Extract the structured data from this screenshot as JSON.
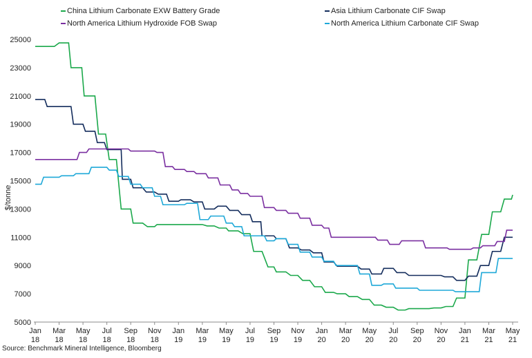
{
  "chart_data": {
    "type": "line",
    "title": "",
    "ylabel": "$/tonne",
    "xlabel": "",
    "ylim": [
      5000,
      25000
    ],
    "yticks": [
      5000,
      7000,
      9000,
      11000,
      13000,
      15000,
      17000,
      19000,
      21000,
      23000,
      25000
    ],
    "ytick_labels": [
      "5000",
      "7000",
      "9000",
      "11000",
      "13000",
      "15000",
      "17000",
      "19000",
      "21000",
      "23000",
      "25000"
    ],
    "xlim": [
      0,
      40
    ],
    "xticks": [
      {
        "month_index": 0,
        "line1": "Jan",
        "line2": "18"
      },
      {
        "month_index": 2,
        "line1": "Mar",
        "line2": "18"
      },
      {
        "month_index": 4,
        "line1": "May",
        "line2": "18"
      },
      {
        "month_index": 6,
        "line1": "Jul",
        "line2": "18"
      },
      {
        "month_index": 8,
        "line1": "Sep",
        "line2": "18"
      },
      {
        "month_index": 10,
        "line1": "Nov",
        "line2": "18"
      },
      {
        "month_index": 12,
        "line1": "Jan",
        "line2": "19"
      },
      {
        "month_index": 14,
        "line1": "Mar",
        "line2": "19"
      },
      {
        "month_index": 16,
        "line1": "May",
        "line2": "19"
      },
      {
        "month_index": 18,
        "line1": "Jul",
        "line2": "19"
      },
      {
        "month_index": 20,
        "line1": "Sep",
        "line2": "19"
      },
      {
        "month_index": 22,
        "line1": "Nov",
        "line2": "19"
      },
      {
        "month_index": 24,
        "line1": "Jan",
        "line2": "20"
      },
      {
        "month_index": 26,
        "line1": "Mar",
        "line2": "20"
      },
      {
        "month_index": 28,
        "line1": "May",
        "line2": "20"
      },
      {
        "month_index": 30,
        "line1": "Jul",
        "line2": "20"
      },
      {
        "month_index": 32,
        "line1": "Sep",
        "line2": "20"
      },
      {
        "month_index": 34,
        "line1": "Nov",
        "line2": "20"
      },
      {
        "month_index": 36,
        "line1": "Jan",
        "line2": "21"
      },
      {
        "month_index": 38,
        "line1": "Mar",
        "line2": "21"
      },
      {
        "month_index": 40,
        "line1": "May",
        "line2": "21"
      }
    ],
    "series": [
      {
        "name": "China Lithium Carbonate EXW Battery Grade",
        "color": "#1aa84a",
        "step": true,
        "points": [
          [
            0,
            24500
          ],
          [
            1.6,
            24500
          ],
          [
            2,
            24750
          ],
          [
            2.8,
            24750
          ],
          [
            3,
            23000
          ],
          [
            3.9,
            23000
          ],
          [
            4.1,
            21000
          ],
          [
            5,
            21000
          ],
          [
            5.3,
            18300
          ],
          [
            5.9,
            18300
          ],
          [
            6.2,
            16500
          ],
          [
            6.8,
            16500
          ],
          [
            7.2,
            13000
          ],
          [
            8.0,
            13000
          ],
          [
            8.2,
            12000
          ],
          [
            9.0,
            12000
          ],
          [
            9.4,
            11750
          ],
          [
            10.0,
            11750
          ],
          [
            10.2,
            11900
          ],
          [
            14.0,
            11900
          ],
          [
            14.4,
            11800
          ],
          [
            15.0,
            11800
          ],
          [
            15.4,
            11650
          ],
          [
            16.0,
            11650
          ],
          [
            16.2,
            11450
          ],
          [
            17.0,
            11450
          ],
          [
            17.4,
            11250
          ],
          [
            18.0,
            11250
          ],
          [
            18.3,
            10000
          ],
          [
            19.0,
            10000
          ],
          [
            19.5,
            8900
          ],
          [
            20.0,
            8900
          ],
          [
            20.2,
            8550
          ],
          [
            21.0,
            8550
          ],
          [
            21.4,
            8300
          ],
          [
            22.0,
            8300
          ],
          [
            22.4,
            7950
          ],
          [
            23.0,
            7950
          ],
          [
            23.4,
            7500
          ],
          [
            24.0,
            7500
          ],
          [
            24.3,
            7100
          ],
          [
            25.0,
            7100
          ],
          [
            25.3,
            7000
          ],
          [
            26.0,
            7000
          ],
          [
            26.3,
            6800
          ],
          [
            27.0,
            6800
          ],
          [
            27.4,
            6600
          ],
          [
            28.0,
            6600
          ],
          [
            28.4,
            6200
          ],
          [
            29.0,
            6200
          ],
          [
            29.4,
            6050
          ],
          [
            30.0,
            6050
          ],
          [
            30.4,
            5850
          ],
          [
            31.0,
            5850
          ],
          [
            31.3,
            5950
          ],
          [
            33.0,
            5950
          ],
          [
            33.4,
            6000
          ],
          [
            34.0,
            6000
          ],
          [
            34.4,
            6100
          ],
          [
            35.0,
            6100
          ],
          [
            35.3,
            6700
          ],
          [
            36.0,
            6700
          ],
          [
            36.3,
            9400
          ],
          [
            37.0,
            9400
          ],
          [
            37.4,
            11200
          ],
          [
            38.0,
            11200
          ],
          [
            38.3,
            12800
          ],
          [
            39.0,
            12800
          ],
          [
            39.3,
            13700
          ],
          [
            39.9,
            13700
          ],
          [
            40.0,
            14000
          ]
        ]
      },
      {
        "name": "Asia Lithium Carbonate CIF Swap",
        "color": "#132c5c",
        "step": true,
        "points": [
          [
            0,
            20750
          ],
          [
            0.8,
            20750
          ],
          [
            1.0,
            20250
          ],
          [
            3.0,
            20250
          ],
          [
            3.2,
            19000
          ],
          [
            4.0,
            19000
          ],
          [
            4.2,
            18500
          ],
          [
            5.0,
            18500
          ],
          [
            5.2,
            17700
          ],
          [
            5.8,
            17700
          ],
          [
            6.0,
            17200
          ],
          [
            7.2,
            17200
          ],
          [
            7.3,
            15100
          ],
          [
            8.0,
            15100
          ],
          [
            8.2,
            14500
          ],
          [
            9.0,
            14500
          ],
          [
            9.3,
            14200
          ],
          [
            10.0,
            14200
          ],
          [
            10.3,
            14050
          ],
          [
            11.0,
            14050
          ],
          [
            11.2,
            13550
          ],
          [
            12.0,
            13550
          ],
          [
            12.2,
            13650
          ],
          [
            13.0,
            13650
          ],
          [
            13.3,
            13500
          ],
          [
            14.0,
            13500
          ],
          [
            14.2,
            13000
          ],
          [
            15.0,
            13000
          ],
          [
            15.3,
            13200
          ],
          [
            16.0,
            13200
          ],
          [
            16.3,
            12900
          ],
          [
            17.0,
            12900
          ],
          [
            17.3,
            12600
          ],
          [
            18.0,
            12600
          ],
          [
            18.2,
            12100
          ],
          [
            18.9,
            12100
          ],
          [
            19.0,
            11100
          ],
          [
            20.0,
            11100
          ],
          [
            20.2,
            10900
          ],
          [
            21.0,
            10900
          ],
          [
            21.3,
            10250
          ],
          [
            22.0,
            10250
          ],
          [
            22.3,
            10100
          ],
          [
            23.0,
            10100
          ],
          [
            23.3,
            9900
          ],
          [
            24.0,
            9900
          ],
          [
            24.2,
            9250
          ],
          [
            25.0,
            9250
          ],
          [
            25.3,
            8950
          ],
          [
            27.0,
            8950
          ],
          [
            27.3,
            8750
          ],
          [
            28.0,
            8750
          ],
          [
            28.2,
            8400
          ],
          [
            29.0,
            8400
          ],
          [
            29.2,
            8800
          ],
          [
            30.0,
            8800
          ],
          [
            30.3,
            8500
          ],
          [
            31.0,
            8500
          ],
          [
            31.3,
            8300
          ],
          [
            34.0,
            8300
          ],
          [
            34.3,
            8200
          ],
          [
            35.0,
            8200
          ],
          [
            35.3,
            7950
          ],
          [
            36.0,
            7950
          ],
          [
            36.3,
            8250
          ],
          [
            37.0,
            8250
          ],
          [
            37.3,
            9000
          ],
          [
            38.0,
            9000
          ],
          [
            38.3,
            10000
          ],
          [
            39.0,
            10000
          ],
          [
            39.3,
            11000
          ],
          [
            40.0,
            11000
          ]
        ]
      },
      {
        "name": "North America Lithium Hydroxide FOB Swap",
        "color": "#7a2fa0",
        "step": true,
        "points": [
          [
            0,
            16500
          ],
          [
            3.5,
            16500
          ],
          [
            3.7,
            17000
          ],
          [
            4.3,
            17000
          ],
          [
            4.5,
            17250
          ],
          [
            7.8,
            17250
          ],
          [
            8.0,
            17100
          ],
          [
            10.0,
            17100
          ],
          [
            10.2,
            17000
          ],
          [
            10.7,
            17000
          ],
          [
            10.9,
            16000
          ],
          [
            11.5,
            16000
          ],
          [
            11.7,
            15800
          ],
          [
            12.5,
            15800
          ],
          [
            12.7,
            15650
          ],
          [
            13.3,
            15650
          ],
          [
            13.5,
            15500
          ],
          [
            14.3,
            15500
          ],
          [
            14.5,
            15200
          ],
          [
            15.3,
            15200
          ],
          [
            15.5,
            14700
          ],
          [
            16.3,
            14700
          ],
          [
            16.5,
            14350
          ],
          [
            17.0,
            14350
          ],
          [
            17.2,
            14100
          ],
          [
            17.8,
            14100
          ],
          [
            18.0,
            13900
          ],
          [
            19.0,
            13900
          ],
          [
            19.2,
            13100
          ],
          [
            20.0,
            13100
          ],
          [
            20.2,
            12900
          ],
          [
            21.0,
            12900
          ],
          [
            21.2,
            12700
          ],
          [
            22.0,
            12700
          ],
          [
            22.2,
            12350
          ],
          [
            23.0,
            12350
          ],
          [
            23.2,
            11850
          ],
          [
            24.0,
            11850
          ],
          [
            24.2,
            11650
          ],
          [
            24.6,
            11650
          ],
          [
            24.8,
            11000
          ],
          [
            28.5,
            11000
          ],
          [
            28.7,
            10800
          ],
          [
            29.5,
            10800
          ],
          [
            29.7,
            10500
          ],
          [
            30.5,
            10500
          ],
          [
            30.7,
            10750
          ],
          [
            32.5,
            10750
          ],
          [
            32.7,
            10250
          ],
          [
            34.5,
            10250
          ],
          [
            34.7,
            10150
          ],
          [
            36.5,
            10150
          ],
          [
            36.7,
            10250
          ],
          [
            37.3,
            10250
          ],
          [
            37.5,
            10400
          ],
          [
            38.5,
            10400
          ],
          [
            38.7,
            10700
          ],
          [
            39.3,
            10700
          ],
          [
            39.5,
            11500
          ],
          [
            40.0,
            11500
          ]
        ]
      },
      {
        "name": "North America Lithium Carbonate CIF Swap",
        "color": "#1ea8d8",
        "step": true,
        "points": [
          [
            0,
            14750
          ],
          [
            0.5,
            14750
          ],
          [
            0.7,
            15250
          ],
          [
            2.0,
            15250
          ],
          [
            2.2,
            15350
          ],
          [
            3.2,
            15350
          ],
          [
            3.4,
            15500
          ],
          [
            4.5,
            15500
          ],
          [
            4.7,
            15950
          ],
          [
            6.0,
            15950
          ],
          [
            6.2,
            15750
          ],
          [
            6.8,
            15750
          ],
          [
            7.0,
            15300
          ],
          [
            7.8,
            15300
          ],
          [
            8.0,
            14750
          ],
          [
            8.8,
            14750
          ],
          [
            9.0,
            14500
          ],
          [
            9.8,
            14500
          ],
          [
            10.0,
            13900
          ],
          [
            10.5,
            13900
          ],
          [
            10.7,
            13300
          ],
          [
            12.5,
            13300
          ],
          [
            12.7,
            13400
          ],
          [
            13.6,
            13400
          ],
          [
            13.8,
            12250
          ],
          [
            14.5,
            12250
          ],
          [
            14.7,
            12500
          ],
          [
            15.8,
            12500
          ],
          [
            16.0,
            12000
          ],
          [
            16.5,
            12000
          ],
          [
            16.7,
            11750
          ],
          [
            17.3,
            11750
          ],
          [
            17.5,
            11100
          ],
          [
            19.2,
            11100
          ],
          [
            19.4,
            10750
          ],
          [
            20.0,
            10750
          ],
          [
            20.2,
            10900
          ],
          [
            21.0,
            10900
          ],
          [
            21.2,
            10500
          ],
          [
            22.0,
            10500
          ],
          [
            22.2,
            9950
          ],
          [
            23.0,
            9950
          ],
          [
            23.2,
            9600
          ],
          [
            24.0,
            9600
          ],
          [
            24.2,
            9300
          ],
          [
            25.0,
            9300
          ],
          [
            25.2,
            9000
          ],
          [
            27.0,
            9000
          ],
          [
            27.2,
            8400
          ],
          [
            28.0,
            8400
          ],
          [
            28.2,
            7600
          ],
          [
            29.0,
            7600
          ],
          [
            29.2,
            7700
          ],
          [
            30.0,
            7700
          ],
          [
            30.2,
            7400
          ],
          [
            32.0,
            7400
          ],
          [
            32.2,
            7250
          ],
          [
            35.0,
            7250
          ],
          [
            35.2,
            7150
          ],
          [
            37.2,
            7150
          ],
          [
            37.4,
            8500
          ],
          [
            38.6,
            8500
          ],
          [
            38.8,
            9500
          ],
          [
            40.0,
            9500
          ]
        ]
      }
    ]
  },
  "legend": [
    {
      "label": "China Lithium Carbonate EXW Battery Grade",
      "color": "#1aa84a"
    },
    {
      "label": "North America Lithium Hydroxide FOB Swap",
      "color": "#7a2fa0"
    },
    {
      "label": "Asia Lithium Carbonate CIF Swap",
      "color": "#132c5c"
    },
    {
      "label": "North America Lithium Carbonate CIF Swap",
      "color": "#1ea8d8"
    }
  ],
  "source": "Source: Benchmark Mineral Intelligence, Bloomberg"
}
